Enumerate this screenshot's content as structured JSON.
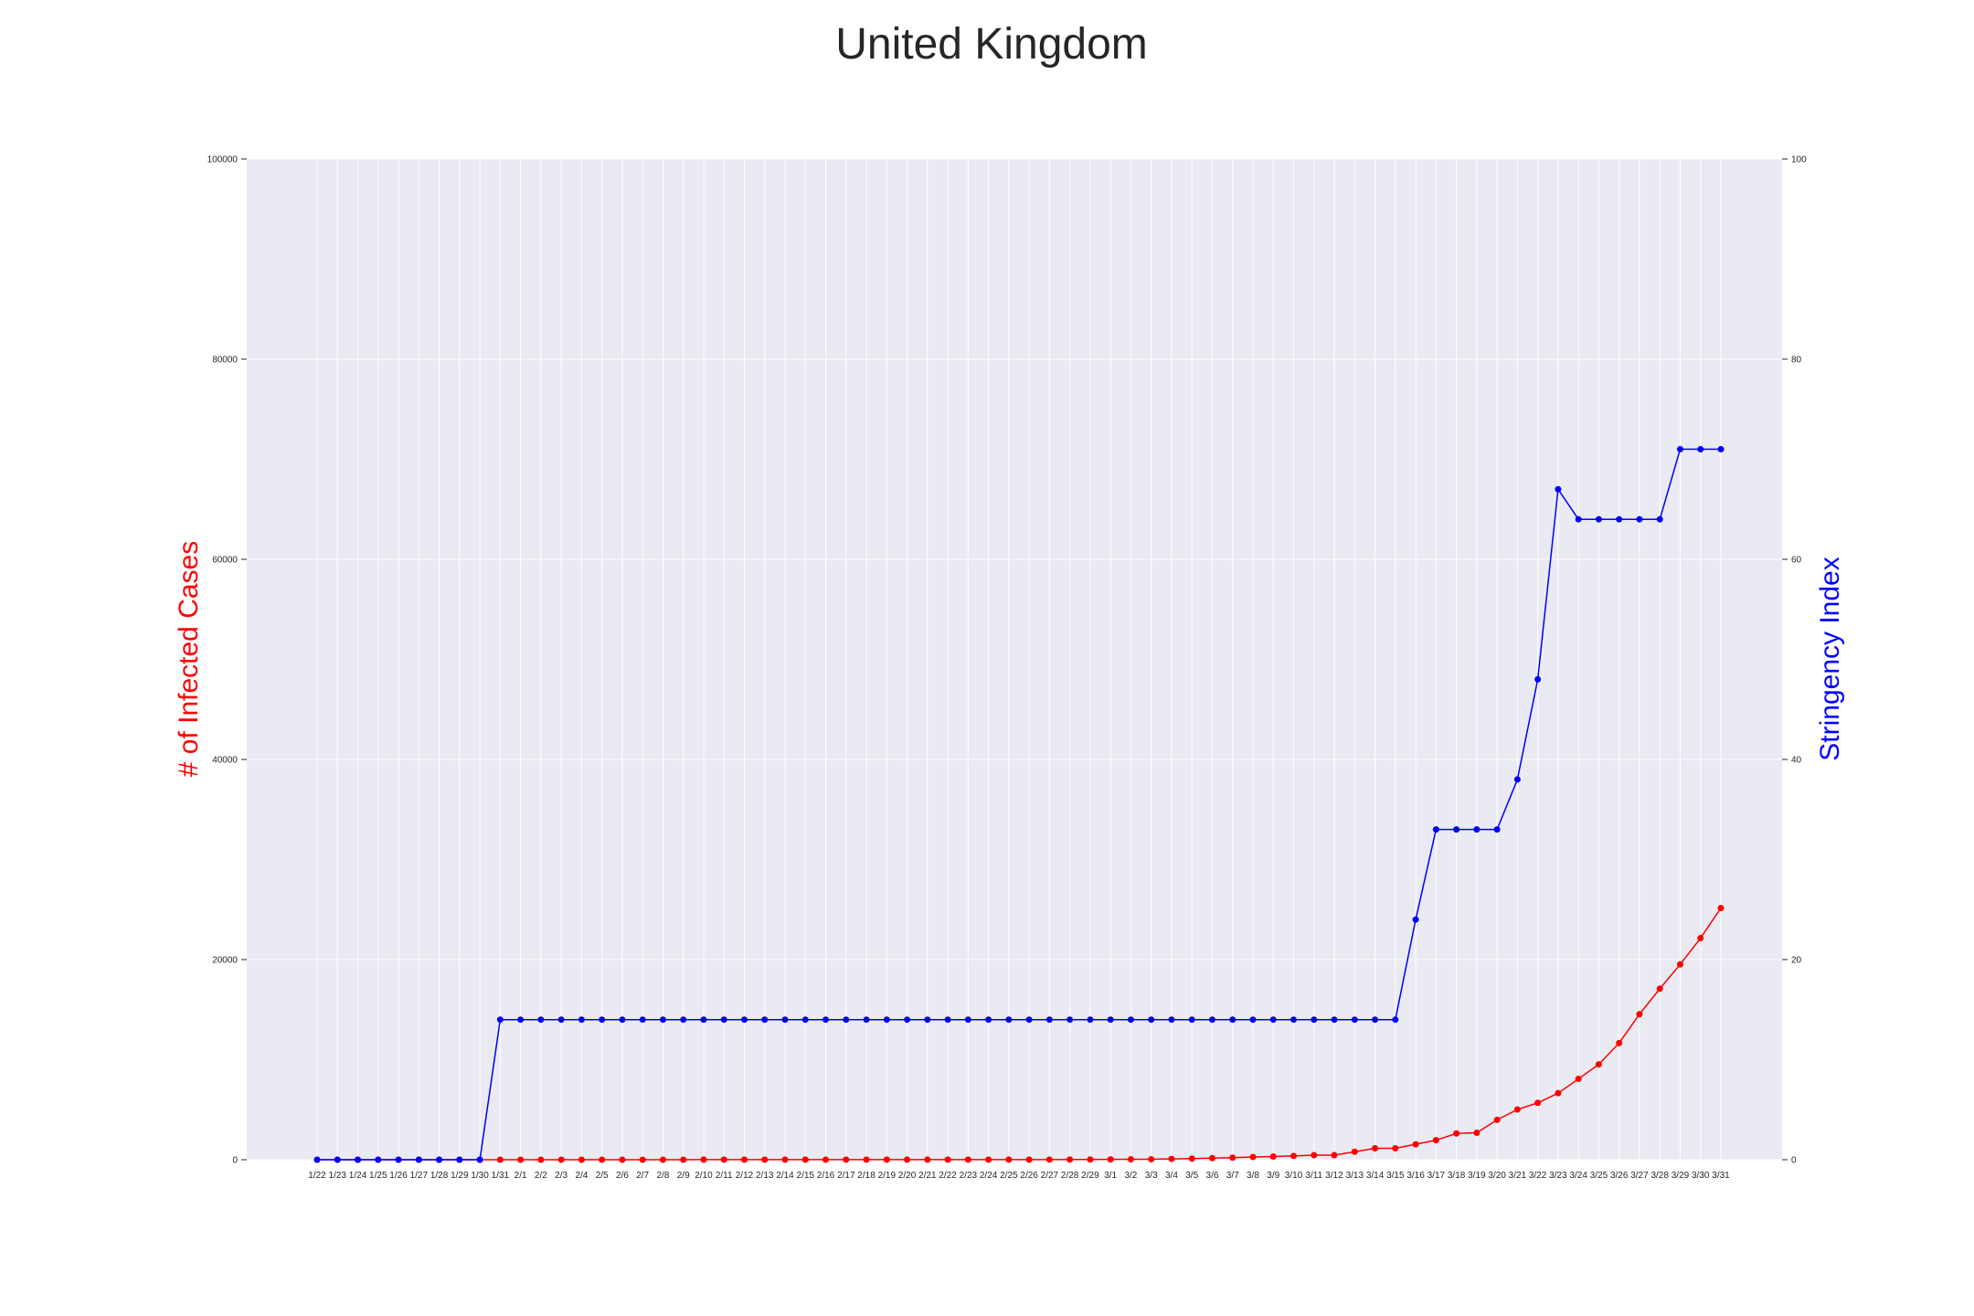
{
  "chart_data": {
    "type": "line",
    "title": "United Kingdom",
    "x": [
      "1/22",
      "1/23",
      "1/24",
      "1/25",
      "1/26",
      "1/27",
      "1/28",
      "1/29",
      "1/30",
      "1/31",
      "2/1",
      "2/2",
      "2/3",
      "2/4",
      "2/5",
      "2/6",
      "2/7",
      "2/8",
      "2/9",
      "2/10",
      "2/11",
      "2/12",
      "2/13",
      "2/14",
      "2/15",
      "2/16",
      "2/17",
      "2/18",
      "2/19",
      "2/20",
      "2/21",
      "2/22",
      "2/23",
      "2/24",
      "2/25",
      "2/26",
      "2/27",
      "2/28",
      "2/29",
      "3/1",
      "3/2",
      "3/3",
      "3/4",
      "3/5",
      "3/6",
      "3/7",
      "3/8",
      "3/9",
      "3/10",
      "3/11",
      "3/12",
      "3/13",
      "3/14",
      "3/15",
      "3/16",
      "3/17",
      "3/18",
      "3/19",
      "3/20",
      "3/21",
      "3/22",
      "3/23",
      "3/24",
      "3/25",
      "3/26",
      "3/27",
      "3/28",
      "3/29",
      "3/30",
      "3/31"
    ],
    "ylabel_left": "# of Infected Cases",
    "ylabel_right": "Stringency Index",
    "ylim_left": [
      0,
      100000
    ],
    "ylim_right": [
      0,
      100
    ],
    "yticks_left": [
      "0",
      "20000",
      "40000",
      "60000",
      "80000",
      "100000"
    ],
    "yticks_right": [
      "0",
      "20",
      "40",
      "60",
      "80",
      "100"
    ],
    "grid": true,
    "background_color": "#eaeaf2",
    "series": [
      {
        "axis": "left",
        "color": "#ff0000",
        "values": [
          0,
          0,
          0,
          0,
          0,
          0,
          0,
          0,
          0,
          2,
          2,
          2,
          2,
          2,
          2,
          3,
          3,
          3,
          3,
          8,
          8,
          9,
          9,
          9,
          9,
          9,
          9,
          9,
          9,
          9,
          9,
          9,
          9,
          13,
          13,
          13,
          15,
          20,
          23,
          36,
          40,
          51,
          85,
          115,
          163,
          206,
          273,
          321,
          382,
          456,
          456,
          798,
          1140,
          1140,
          1543,
          1950,
          2626,
          2689,
          3983,
          5018,
          5683,
          6650,
          8077,
          9529,
          11658,
          14543,
          17089,
          19522,
          22141,
          25150
        ]
      },
      {
        "axis": "right",
        "color": "#0000ff",
        "values": [
          0,
          0,
          0,
          0,
          0,
          0,
          0,
          0,
          0,
          14,
          14,
          14,
          14,
          14,
          14,
          14,
          14,
          14,
          14,
          14,
          14,
          14,
          14,
          14,
          14,
          14,
          14,
          14,
          14,
          14,
          14,
          14,
          14,
          14,
          14,
          14,
          14,
          14,
          14,
          14,
          14,
          14,
          14,
          14,
          14,
          14,
          14,
          14,
          14,
          14,
          14,
          14,
          14,
          14,
          24,
          33,
          33,
          33,
          33,
          38,
          48,
          67,
          64,
          64,
          64,
          64,
          64,
          71,
          71,
          71
        ]
      }
    ]
  }
}
